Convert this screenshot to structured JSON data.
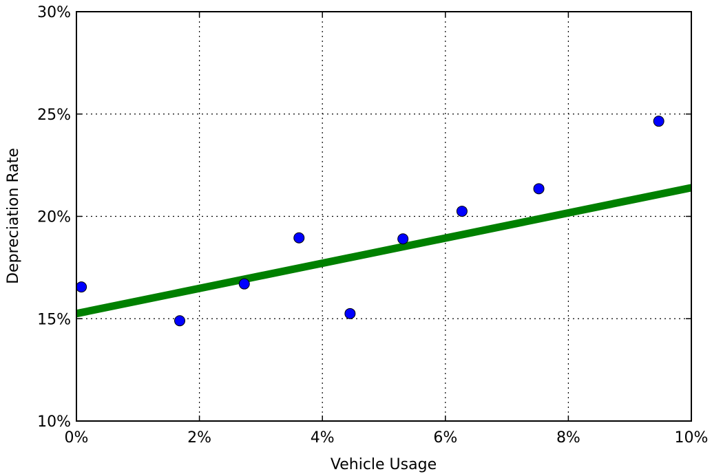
{
  "chart_data": {
    "type": "scatter",
    "title": "",
    "xlabel": "Vehicle Usage",
    "ylabel": "Depreciation Rate",
    "xlim": [
      0,
      10
    ],
    "ylim": [
      10,
      30
    ],
    "x_ticks": [
      0,
      2,
      4,
      6,
      8,
      10
    ],
    "y_ticks": [
      10,
      15,
      20,
      25,
      30
    ],
    "x_tick_labels": [
      "0%",
      "2%",
      "4%",
      "6%",
      "8%",
      "10%"
    ],
    "y_tick_labels": [
      "10%",
      "15%",
      "20%",
      "25%",
      "30%"
    ],
    "grid": true,
    "series": [
      {
        "type": "scatter",
        "color": "#0000ff",
        "points": [
          {
            "x": 0.08,
            "y": 16.55
          },
          {
            "x": 1.68,
            "y": 14.9
          },
          {
            "x": 2.73,
            "y": 16.7
          },
          {
            "x": 3.62,
            "y": 18.95
          },
          {
            "x": 4.45,
            "y": 15.25
          },
          {
            "x": 5.31,
            "y": 18.9
          },
          {
            "x": 6.27,
            "y": 20.25
          },
          {
            "x": 7.52,
            "y": 21.35
          },
          {
            "x": 9.47,
            "y": 24.65
          }
        ]
      },
      {
        "type": "line",
        "color": "#008000",
        "points": [
          {
            "x": 0,
            "y": 15.25
          },
          {
            "x": 10,
            "y": 21.4
          }
        ]
      }
    ]
  }
}
